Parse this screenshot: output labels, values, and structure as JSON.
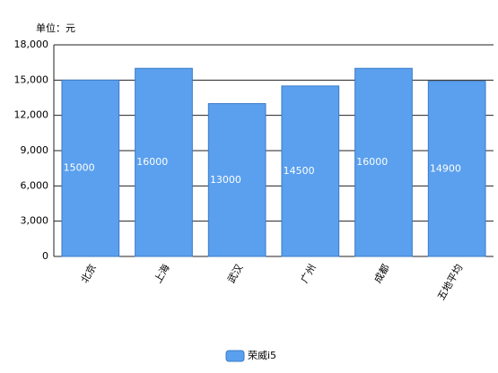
{
  "chart_data": {
    "type": "bar",
    "title": "单位：元",
    "categories": [
      "北京",
      "上海",
      "武汉",
      "广州",
      "成都",
      "五地平均"
    ],
    "series": [
      {
        "name": "荣威i5",
        "color": "#5aa0ee",
        "values": [
          15000,
          16000,
          13000,
          14500,
          16000,
          14900
        ]
      }
    ],
    "ylim": [
      0,
      18000
    ],
    "yticks": [
      0,
      {
        "value": 3000,
        "label": "3,000"
      },
      {
        "value": 6000,
        "label": "6,000"
      },
      {
        "value": 9000,
        "label": "9,000"
      },
      {
        "value": 12000,
        "label": "12,000"
      },
      {
        "value": 15000,
        "label": "15,000"
      },
      {
        "value": 18000,
        "label": "18,000"
      }
    ],
    "grid": true,
    "legend": "bottom"
  }
}
